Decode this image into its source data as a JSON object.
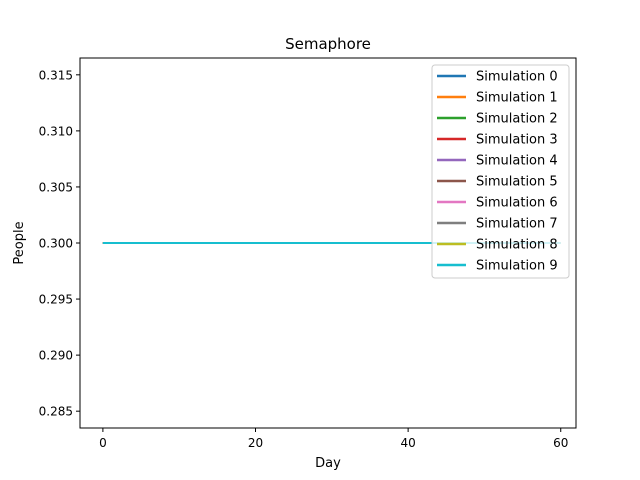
{
  "chart_data": {
    "type": "line",
    "title": "Semaphore",
    "xlabel": "Day",
    "ylabel": "People",
    "xlim": [
      -3,
      62
    ],
    "ylim": [
      0.2835,
      0.3165
    ],
    "xticks": [
      0,
      20,
      40,
      60
    ],
    "xtick_labels": [
      "0",
      "20",
      "40",
      "60"
    ],
    "yticks": [
      0.285,
      0.29,
      0.295,
      0.3,
      0.305,
      0.31,
      0.315
    ],
    "ytick_labels": [
      "0.285",
      "0.290",
      "0.295",
      "0.300",
      "0.305",
      "0.310",
      "0.315"
    ],
    "grid": false,
    "legend_position": "top-right",
    "x": [
      0,
      60
    ],
    "series": [
      {
        "name": "Simulation 0",
        "color": "#1f77b4",
        "values": [
          0.3,
          0.3
        ]
      },
      {
        "name": "Simulation 1",
        "color": "#ff7f0e",
        "values": [
          0.3,
          0.3
        ]
      },
      {
        "name": "Simulation 2",
        "color": "#2ca02c",
        "values": [
          0.3,
          0.3
        ]
      },
      {
        "name": "Simulation 3",
        "color": "#d62728",
        "values": [
          0.3,
          0.3
        ]
      },
      {
        "name": "Simulation 4",
        "color": "#9467bd",
        "values": [
          0.3,
          0.3
        ]
      },
      {
        "name": "Simulation 5",
        "color": "#8c564b",
        "values": [
          0.3,
          0.3
        ]
      },
      {
        "name": "Simulation 6",
        "color": "#e377c2",
        "values": [
          0.3,
          0.3
        ]
      },
      {
        "name": "Simulation 7",
        "color": "#7f7f7f",
        "values": [
          0.3,
          0.3
        ]
      },
      {
        "name": "Simulation 8",
        "color": "#bcbd22",
        "values": [
          0.3,
          0.3
        ]
      },
      {
        "name": "Simulation 9",
        "color": "#17becf",
        "values": [
          0.3,
          0.3
        ]
      }
    ]
  }
}
